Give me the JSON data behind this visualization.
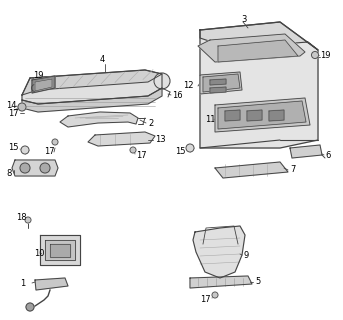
{
  "bg_color": "#ffffff",
  "line_color": "#444444",
  "text_color": "#000000",
  "figsize": [
    3.43,
    3.2
  ],
  "dpi": 100
}
